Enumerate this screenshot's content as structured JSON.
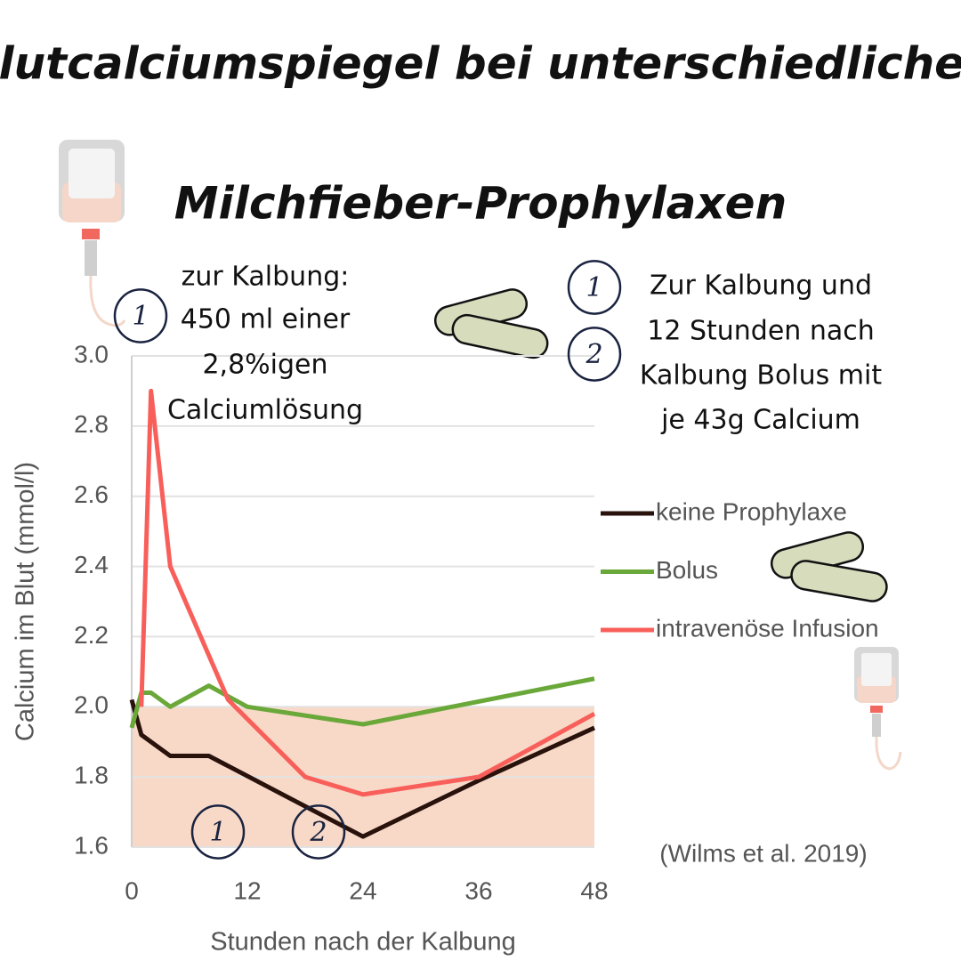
{
  "chart_data": {
    "type": "line",
    "title": [
      "Blutcalciumspiegel bei unterschiedlichen",
      "Milchfieber-Prophylaxen"
    ],
    "x_label": "Stunden nach der Kalbung",
    "y_label": "Calcium im Blut (mmol/l)",
    "source": "(Wilms et al. 2019)",
    "xlim": [
      0,
      48
    ],
    "ylim": [
      1.6,
      3.0
    ],
    "xticks": [
      0,
      12,
      24,
      36,
      48
    ],
    "yticks": [
      1.6,
      1.8,
      {
        "value": 2,
        "label": "2.0"
      },
      2.2,
      2.4,
      2.6,
      2.8,
      {
        "value": 3,
        "label": "3.0"
      }
    ],
    "grid": true,
    "shaded_range": {
      "from": 1.6,
      "to": 2.0,
      "color": "#f8d9c8"
    },
    "series": [
      {
        "name": "keine Prophylaxe",
        "color": "#2a120c",
        "x": [
          0,
          1,
          4,
          8,
          24,
          36,
          48
        ],
        "values": [
          2.02,
          1.92,
          1.86,
          1.86,
          1.63,
          1.79,
          1.94
        ]
      },
      {
        "name": "Bolus",
        "color": "#6aa83a",
        "x": [
          0,
          1,
          2,
          4,
          8,
          12,
          24,
          48
        ],
        "values": [
          1.94,
          2.04,
          2.04,
          2.0,
          2.06,
          2.0,
          1.95,
          2.08
        ]
      },
      {
        "name": "intravenöse Infusion",
        "color": "#f95f5a",
        "x": [
          1,
          2,
          4,
          10,
          18,
          24,
          36,
          48
        ],
        "values": [
          2.0,
          2.9,
          2.4,
          2.02,
          1.8,
          1.75,
          1.8,
          1.98
        ]
      }
    ],
    "annotations": [
      {
        "markers": [
          "1"
        ],
        "lines": [
          "zur Kalbung:",
          "450 ml einer",
          "2,8%igen",
          "Calciumlösung"
        ]
      },
      {
        "markers": [
          "1",
          "2"
        ],
        "lines": [
          "Zur Kalbung und",
          "12 Stunden nach",
          "Kalbung Bolus mit",
          "je 43g Calcium"
        ]
      }
    ],
    "chart_markers": [
      "1",
      "2"
    ]
  }
}
